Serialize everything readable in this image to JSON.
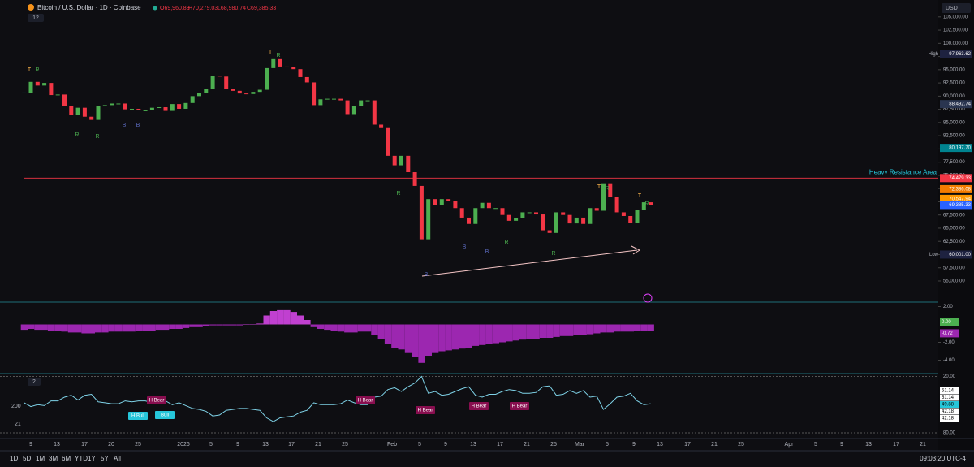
{
  "header": {
    "symbol": "Bitcoin / U.S. Dollar · 1D · Coinbase",
    "open": "O69,960.83",
    "high": "H70,279.03",
    "low": "L68,980.74",
    "close": "C69,385.33",
    "indicators": "12",
    "currency": "USD"
  },
  "chart_data": {
    "type": "candlestick",
    "close": [
      90600,
      92700,
      92000,
      92500,
      90200,
      90300,
      88200,
      86400,
      87800,
      86100,
      85500,
      88100,
      88300,
      88600,
      88600,
      87500,
      87600,
      87300,
      87300,
      87800,
      87900,
      87200,
      88500,
      87600,
      88700,
      90000,
      90600,
      91400,
      93900,
      93700,
      91300,
      91000,
      90500,
      90400,
      90800,
      91200,
      95300,
      97000,
      95600,
      95500,
      95100,
      93600,
      92600,
      88300,
      89400,
      89500,
      89500,
      89200,
      86600,
      88200,
      89200,
      89200,
      84600,
      84100,
      78700,
      76900,
      78700,
      75600,
      73000,
      62900,
      70500,
      69300,
      70500,
      70100,
      68800,
      67000,
      65800,
      68800,
      69800,
      68800,
      68800,
      67500,
      66400,
      66900,
      68000,
      68000,
      67600,
      64600,
      64100,
      68000,
      67500,
      65900,
      67000,
      65800,
      68800,
      68300,
      73500,
      70900,
      68000,
      67300,
      66000,
      68400,
      69900,
      69400
    ],
    "ylim": [
      51000,
      108200
    ],
    "yticks": [
      {
        "value": 105000,
        "label": "105,000.00"
      },
      {
        "value": 102500,
        "label": "102,500.00"
      },
      {
        "value": 100000,
        "label": "100,000.00"
      },
      {
        "value": 97500,
        "label": "97,500.00"
      },
      {
        "value": 95000,
        "label": "95,000.00"
      },
      {
        "value": 92500,
        "label": "92,500.00"
      },
      {
        "value": 90000,
        "label": "90,000.00"
      },
      {
        "value": 87500,
        "label": "87,500.00"
      },
      {
        "value": 85000,
        "label": "85,000.00"
      },
      {
        "value": 82500,
        "label": "82,500.00"
      },
      {
        "value": 80000,
        "label": "80,000.00"
      },
      {
        "value": 77500,
        "label": "77,500.00"
      },
      {
        "value": 75000,
        "label": "75,000.00"
      },
      {
        "value": 72500,
        "label": "72,500.00"
      },
      {
        "value": 70000,
        "label": "70,000.00"
      },
      {
        "value": 67500,
        "label": "67,500.00"
      },
      {
        "value": 65000,
        "label": "65,000.00"
      },
      {
        "value": 62500,
        "label": "62,500.00"
      },
      {
        "value": 60000,
        "label": "60,000.00"
      },
      {
        "value": 57500,
        "label": "57,500.00"
      },
      {
        "value": 55000,
        "label": "55,000.00"
      }
    ],
    "badges": [
      {
        "value": 97963.62,
        "label": "97,963.62",
        "name": "High",
        "color": "#1e2240"
      },
      {
        "value": 88492.74,
        "label": "88,492.74",
        "color": "#2a3550"
      },
      {
        "value": 80197.7,
        "label": "80,197.70",
        "color": "#00838f"
      },
      {
        "value": 74479.33,
        "label": "74,479.33",
        "color": "#f23645"
      },
      {
        "value": 72386.08,
        "label": "72,386.08",
        "color": "#f57c00"
      },
      {
        "value": 70547.94,
        "label": "70,547.94",
        "color": "#ff9800"
      },
      {
        "value": 69385.33,
        "label": "69,385.33",
        "color": "#2962ff"
      },
      {
        "value": 60001.0,
        "label": "60,001.00",
        "name": "Low",
        "color": "#1e2240"
      }
    ],
    "resistance": {
      "label": "Heavy Resistance Area",
      "value": 74479.33
    },
    "markers": [
      "T",
      "R",
      "R",
      "R",
      "B",
      "B",
      "T",
      "R",
      "R",
      "B",
      "B",
      "B",
      "R",
      "R",
      "T",
      "R",
      "T",
      "R"
    ],
    "x_labels": [
      "9",
      "13",
      "17",
      "20",
      "25",
      "2026",
      "5",
      "9",
      "13",
      "17",
      "21",
      "25",
      "Feb",
      "5",
      "9",
      "13",
      "17",
      "21",
      "25",
      "Mar",
      "5",
      "9",
      "13",
      "17",
      "21",
      "25",
      "Apr",
      "5",
      "9",
      "13",
      "17",
      "21"
    ]
  },
  "momentum": {
    "type": "bar",
    "color": "#9c27b0",
    "values": [
      -0.6,
      -0.5,
      -0.6,
      -0.6,
      -0.7,
      -0.7,
      -0.8,
      -0.9,
      -0.9,
      -1.0,
      -1.0,
      -0.9,
      -0.9,
      -0.8,
      -0.8,
      -0.8,
      -0.8,
      -0.7,
      -0.7,
      -0.7,
      -0.6,
      -0.6,
      -0.5,
      -0.5,
      -0.4,
      -0.3,
      -0.3,
      -0.2,
      -0.1,
      -0.1,
      -0.1,
      -0.1,
      -0.1,
      0.0,
      0.0,
      0.1,
      1.0,
      1.5,
      1.6,
      1.6,
      1.4,
      1.0,
      0.5,
      -0.3,
      -0.5,
      -0.6,
      -0.7,
      -0.8,
      -0.9,
      -0.9,
      -0.8,
      -0.8,
      -1.2,
      -1.6,
      -2.2,
      -2.6,
      -2.8,
      -3.2,
      -3.6,
      -4.3,
      -3.5,
      -3.2,
      -3.0,
      -2.9,
      -2.8,
      -2.7,
      -2.6,
      -2.4,
      -2.3,
      -2.2,
      -2.1,
      -2.0,
      -1.9,
      -1.8,
      -1.7,
      -1.6,
      -1.6,
      -1.5,
      -1.5,
      -1.4,
      -1.3,
      -1.3,
      -1.2,
      -1.2,
      -1.1,
      -1.0,
      -0.9,
      -0.9,
      -0.8,
      -0.8,
      -0.8,
      -0.7,
      -0.7,
      -0.7
    ],
    "ylim": [
      2.5,
      -5.5
    ],
    "yticks": [
      {
        "value": 2,
        "label": "2.00"
      },
      {
        "value": -2,
        "label": "-2.00"
      },
      {
        "value": -4,
        "label": "-4.00"
      }
    ],
    "badges": [
      {
        "value": 0,
        "label": "0.00",
        "color": "#4caf50"
      },
      {
        "value": -0.72,
        "label": "-0.72",
        "color": "#9c27b0"
      }
    ]
  },
  "oscillator": {
    "type": "line",
    "indicators": "2",
    "left_labels": [
      "200",
      "21"
    ],
    "color": "#7fd3e8",
    "values": [
      48,
      52,
      50,
      51,
      46,
      46,
      42,
      40,
      45,
      40,
      39,
      47,
      48,
      49,
      49,
      46,
      47,
      46,
      46,
      48,
      48,
      46,
      50,
      48,
      51,
      54,
      55,
      57,
      62,
      61,
      56,
      55,
      54,
      54,
      55,
      56,
      64,
      68,
      64,
      63,
      62,
      58,
      56,
      48,
      50,
      50,
      50,
      49,
      45,
      48,
      50,
      50,
      42,
      41,
      34,
      32,
      36,
      31,
      27,
      20,
      38,
      36,
      40,
      39,
      36,
      33,
      31,
      40,
      42,
      39,
      39,
      36,
      34,
      35,
      38,
      38,
      37,
      31,
      30,
      40,
      39,
      35,
      38,
      35,
      42,
      41,
      55,
      49,
      42,
      41,
      38,
      46,
      50,
      49
    ],
    "ylim": [
      17,
      86
    ],
    "yticks": [
      {
        "value": 80,
        "label": "80.00"
      },
      {
        "value": 20,
        "label": "20.00"
      }
    ],
    "badges": [
      {
        "value": 51.14,
        "label": "51.14"
      },
      {
        "value": 51.14,
        "label": "51.14"
      },
      {
        "value": 49.88,
        "label": "49.88"
      },
      {
        "value": 42.18,
        "label": "42.18"
      },
      {
        "value": 42.18,
        "label": "42.18"
      }
    ],
    "annotations": [
      "H Bear",
      "H Bull",
      "Bull",
      "H Bear",
      "H Bear",
      "H Bear",
      "H Bear"
    ]
  },
  "toolbar": {
    "ranges": [
      "1D",
      "5D",
      "1M",
      "3M",
      "6M",
      "YTD",
      "1Y",
      "5Y",
      "All"
    ],
    "time": "09:03:20 UTC-4"
  }
}
